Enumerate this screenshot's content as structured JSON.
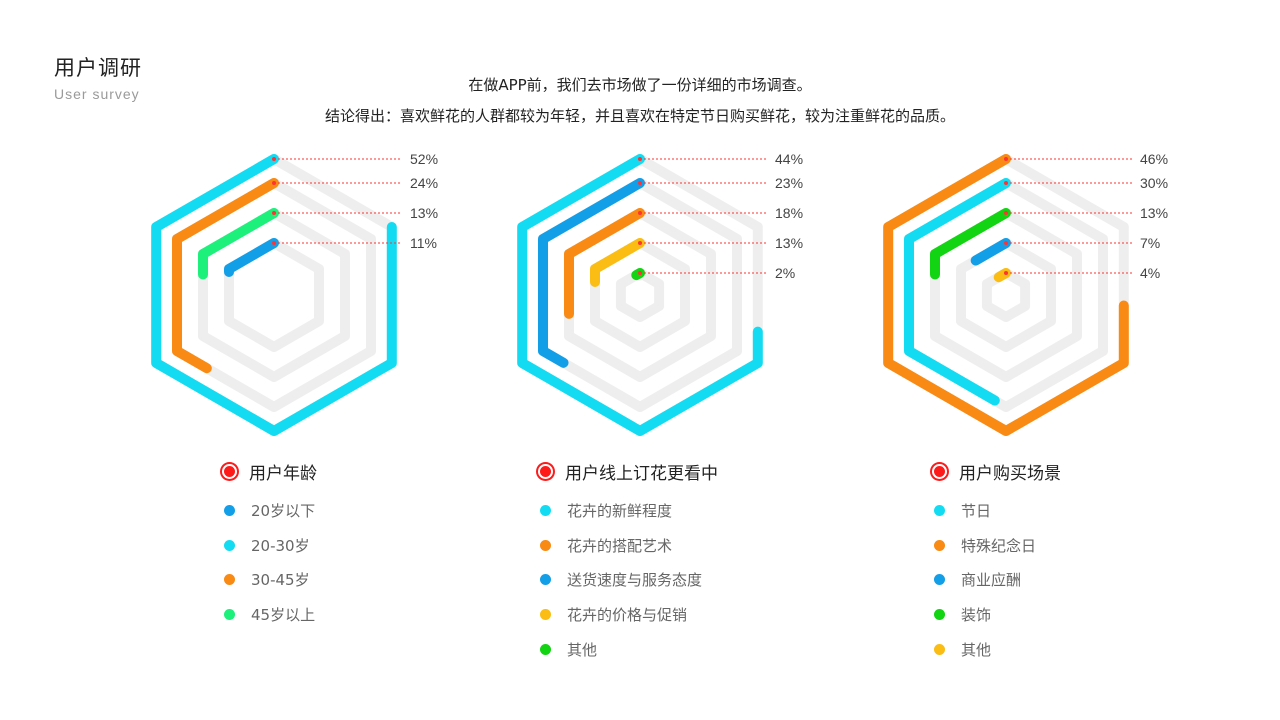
{
  "header": {
    "title": "用户调研",
    "subtitle": "User  survey",
    "intro_line1": "在做APP前，我们去市场做了一份详细的市场调查。",
    "intro_line2": "结论得出：喜欢鲜花的人群都较为年轻，并且喜欢在特定节日购买鲜花，较为注重鲜花的品质。"
  },
  "colors": {
    "cyan": "#13dcf2",
    "orange": "#f98a13",
    "green": "#1ef07c",
    "blue": "#139ee8",
    "yellow": "#fbbd13",
    "lime": "#13d413",
    "track": "#eeeeee",
    "leader": "#ff3333",
    "title_dot": "#ff1a1a"
  },
  "chart_data": [
    {
      "type": "radial-hexagon",
      "title": "用户年龄",
      "series": [
        {
          "name": "20岁以下",
          "value": 11,
          "label": "11%",
          "color": "#139ee8"
        },
        {
          "name": "20-30岁",
          "value": 52,
          "label": "52%",
          "color": "#13dcf2"
        },
        {
          "name": "30-45岁",
          "value": 24,
          "label": "24%",
          "color": "#f98a13"
        },
        {
          "name": "45岁以上",
          "value": 13,
          "label": "13%",
          "color": "#1ef07c"
        }
      ]
    },
    {
      "type": "radial-hexagon",
      "title": "用户线上订花更看中",
      "series": [
        {
          "name": "花卉的新鲜程度",
          "value": 44,
          "label": "44%",
          "color": "#13dcf2"
        },
        {
          "name": "花卉的搭配艺术",
          "value": 18,
          "label": "18%",
          "color": "#f98a13"
        },
        {
          "name": "送货速度与服务态度",
          "value": 23,
          "label": "23%",
          "color": "#139ee8"
        },
        {
          "name": "花卉的价格与促销",
          "value": 13,
          "label": "13%",
          "color": "#fbbd13"
        },
        {
          "name": "其他",
          "value": 2,
          "label": "2%",
          "color": "#13d413"
        }
      ]
    },
    {
      "type": "radial-hexagon",
      "title": "用户购买场景",
      "series": [
        {
          "name": "节日",
          "value": 30,
          "label": "30%",
          "color": "#13dcf2"
        },
        {
          "name": "特殊纪念日",
          "value": 46,
          "label": "46%",
          "color": "#f98a13"
        },
        {
          "name": "商业应酬",
          "value": 7,
          "label": "7%",
          "color": "#139ee8"
        },
        {
          "name": "装饰",
          "value": 13,
          "label": "13%",
          "color": "#13d413"
        },
        {
          "name": "其他",
          "value": 4,
          "label": "4%",
          "color": "#fbbd13"
        }
      ]
    }
  ]
}
